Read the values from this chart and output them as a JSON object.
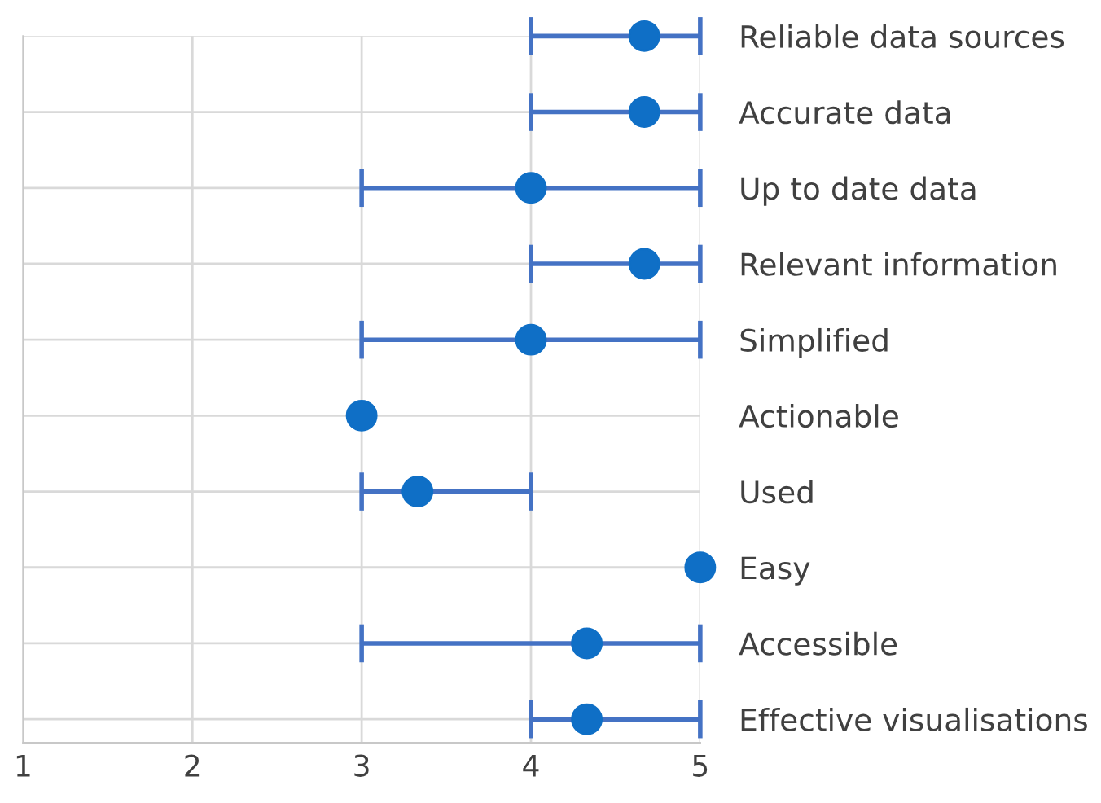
{
  "chart_data": {
    "type": "scatter",
    "orientation": "horizontal",
    "categories": [
      "Reliable data sources",
      "Accurate data",
      "Up to date data",
      "Relevant information",
      "Simplified",
      "Actionable",
      "Used",
      "Easy",
      "Accessible",
      "Effective visualisations"
    ],
    "values": [
      4.67,
      4.67,
      4.0,
      4.67,
      4.0,
      3.0,
      3.33,
      5.0,
      4.33,
      4.33
    ],
    "errors": [
      [
        4,
        5
      ],
      [
        4,
        5
      ],
      [
        3,
        5
      ],
      [
        4,
        5
      ],
      [
        3,
        5
      ],
      null,
      [
        3,
        4
      ],
      null,
      [
        3,
        5
      ],
      [
        4,
        5
      ]
    ],
    "color": "#0f6fc6",
    "xlim": [
      1,
      5
    ],
    "xticks": [
      1,
      2,
      3,
      4,
      5
    ],
    "grid": true,
    "marker": "circle"
  }
}
